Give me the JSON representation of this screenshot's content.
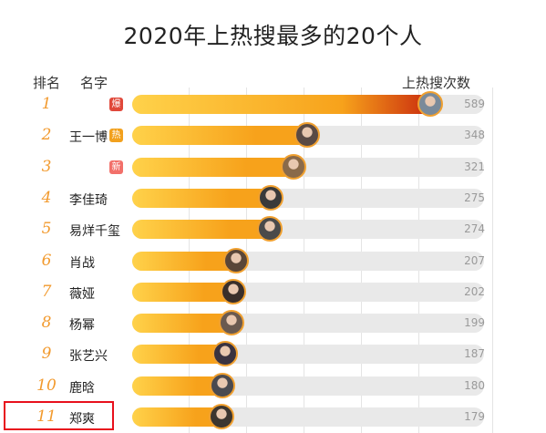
{
  "page": {
    "title": "2020年上热搜最多的20个人"
  },
  "header": {
    "rank_label": "排名",
    "name_label": "名字",
    "count_label": "上热搜次数"
  },
  "chart_data": {
    "type": "bar",
    "orientation": "horizontal",
    "title": "2020年上热搜最多的20个人",
    "xlim": [
      0,
      620
    ],
    "rows": [
      {
        "rank": "1",
        "name": "",
        "tag": "爆",
        "value": 589
      },
      {
        "rank": "2",
        "name": "王一博",
        "tag": "热",
        "value": 348
      },
      {
        "rank": "3",
        "name": "",
        "tag": "新",
        "value": 321
      },
      {
        "rank": "4",
        "name": "李佳琦",
        "value": 275
      },
      {
        "rank": "5",
        "name": "易烊千玺",
        "value": 274
      },
      {
        "rank": "6",
        "name": "肖战",
        "value": 207
      },
      {
        "rank": "7",
        "name": "薇娅",
        "value": 202
      },
      {
        "rank": "8",
        "name": "杨幂",
        "value": 199
      },
      {
        "rank": "9",
        "name": "张艺兴",
        "value": 187
      },
      {
        "rank": "10",
        "name": "鹿晗",
        "value": 180
      },
      {
        "rank": "11",
        "name": "郑爽",
        "value": 179
      }
    ],
    "colors": {
      "bar_start": "#ffd24a",
      "bar_mid": "#f7a21b",
      "bar_top": "#c92a0e",
      "track": "#e9e9e9",
      "highlight_box": "#e8101c"
    }
  }
}
